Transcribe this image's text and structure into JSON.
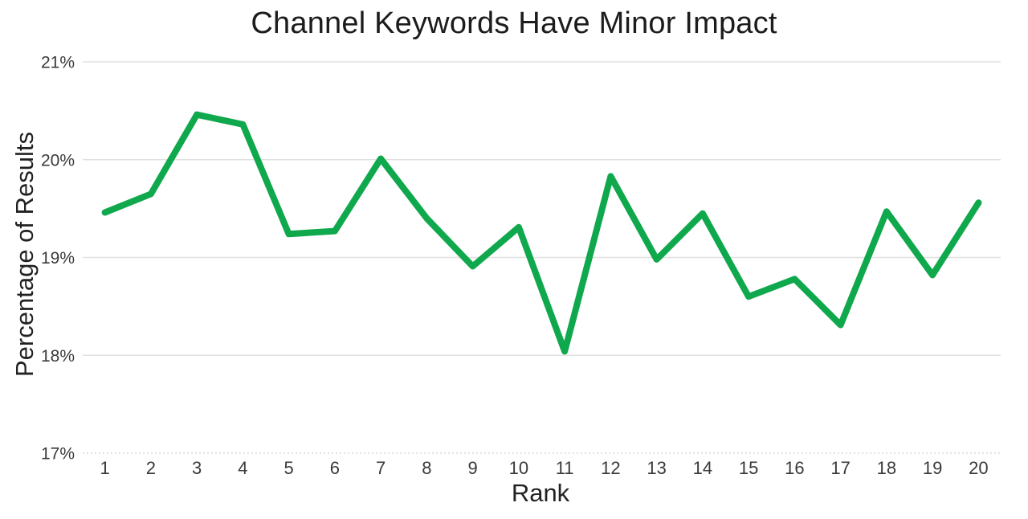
{
  "chart_data": {
    "type": "line",
    "title": "Channel Keywords Have Minor Impact",
    "xlabel": "Rank",
    "ylabel": "Percentage of Results",
    "x": [
      1,
      2,
      3,
      4,
      5,
      6,
      7,
      8,
      9,
      10,
      11,
      12,
      13,
      14,
      15,
      16,
      17,
      18,
      19,
      20
    ],
    "xtick_labels": [
      "1",
      "2",
      "3",
      "4",
      "5",
      "6",
      "7",
      "8",
      "9",
      "10",
      "11",
      "12",
      "13",
      "14",
      "15",
      "16",
      "17",
      "18",
      "19",
      "20"
    ],
    "values": [
      19.46,
      19.65,
      20.46,
      20.36,
      19.24,
      19.27,
      20.01,
      19.4,
      18.91,
      19.31,
      18.04,
      19.83,
      18.98,
      19.45,
      18.6,
      18.78,
      18.31,
      19.47,
      18.82,
      19.56
    ],
    "ylim": [
      17,
      21
    ],
    "yticks": [
      21,
      20,
      19,
      18,
      17
    ],
    "ytick_labels": [
      "21%",
      "20%",
      "19%",
      "18%",
      "17%"
    ],
    "grid": "horizontal",
    "legend": "none",
    "line_color": "#0FA84D",
    "line_width": 8,
    "background_color": "#FFFFFF"
  }
}
